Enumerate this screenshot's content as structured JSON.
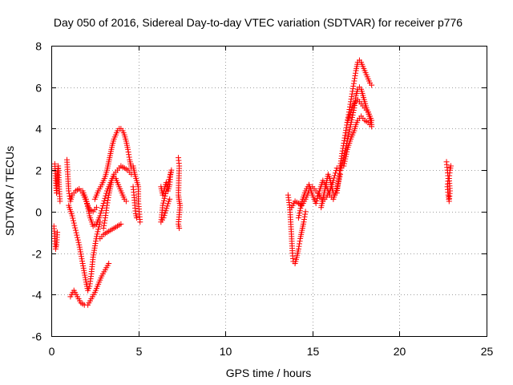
{
  "chart_data": {
    "type": "scatter",
    "title": "Day 050 of 2016, Sidereal Day-to-day VTEC variation (SDTVAR) for receiver p776",
    "xlabel": "GPS time / hours",
    "ylabel": "SDTVAR / TECUs",
    "xlim": [
      0,
      25
    ],
    "ylim": [
      -6,
      8
    ],
    "xticks": [
      0,
      5,
      10,
      15,
      20,
      25
    ],
    "yticks": [
      -6,
      -4,
      -2,
      0,
      2,
      4,
      6,
      8
    ],
    "grid": true,
    "marker": "+",
    "color": "#ff0000",
    "series": [
      {
        "name": "SDTVAR",
        "segments": [
          [
            [
              0.15,
              -0.7
            ],
            [
              0.2,
              -1.3
            ],
            [
              0.25,
              -1.8
            ],
            [
              0.3,
              -1.6
            ],
            [
              0.35,
              -1.0
            ]
          ],
          [
            [
              0.2,
              2.3
            ],
            [
              0.25,
              1.5
            ],
            [
              0.3,
              0.9
            ],
            [
              0.35,
              1.8
            ],
            [
              0.4,
              2.2
            ],
            [
              0.45,
              1.2
            ],
            [
              0.5,
              0.5
            ]
          ],
          [
            [
              0.9,
              2.5
            ],
            [
              1.0,
              1.0
            ],
            [
              1.1,
              0.5
            ],
            [
              1.2,
              0.8
            ],
            [
              1.4,
              1.0
            ],
            [
              1.6,
              1.1
            ],
            [
              1.8,
              0.9
            ],
            [
              2.0,
              0.5
            ],
            [
              2.2,
              0.1
            ],
            [
              2.4,
              0.0
            ],
            [
              2.6,
              0.2
            ]
          ],
          [
            [
              1.0,
              0.3
            ],
            [
              1.2,
              -0.2
            ],
            [
              1.4,
              -0.9
            ],
            [
              1.6,
              -1.6
            ],
            [
              1.8,
              -2.5
            ],
            [
              2.0,
              -3.4
            ],
            [
              2.1,
              -3.8
            ],
            [
              2.2,
              -3.6
            ],
            [
              2.3,
              -3.0
            ],
            [
              2.4,
              -2.2
            ],
            [
              2.6,
              -1.2
            ],
            [
              2.8,
              -0.5
            ]
          ],
          [
            [
              1.1,
              -4.1
            ],
            [
              1.3,
              -3.8
            ],
            [
              1.5,
              -4.1
            ],
            [
              1.7,
              -4.4
            ],
            [
              1.9,
              -4.5
            ],
            [
              2.1,
              -4.5
            ],
            [
              2.3,
              -4.2
            ],
            [
              2.5,
              -3.9
            ],
            [
              2.7,
              -3.5
            ],
            [
              2.9,
              -3.1
            ],
            [
              3.1,
              -2.8
            ],
            [
              3.3,
              -2.5
            ]
          ],
          [
            [
              1.8,
              1.0
            ],
            [
              2.0,
              0.6
            ],
            [
              2.2,
              -0.2
            ],
            [
              2.4,
              -0.7
            ],
            [
              2.6,
              -0.6
            ],
            [
              2.8,
              -0.2
            ],
            [
              3.0,
              0.4
            ],
            [
              3.2,
              1.0
            ],
            [
              3.4,
              1.4
            ],
            [
              3.6,
              1.8
            ],
            [
              3.8,
              2.0
            ],
            [
              4.0,
              2.2
            ],
            [
              4.2,
              2.1
            ],
            [
              4.4,
              2.0
            ],
            [
              4.6,
              1.8
            ]
          ],
          [
            [
              2.5,
              0.6
            ],
            [
              2.7,
              1.0
            ],
            [
              2.9,
              1.3
            ],
            [
              3.1,
              1.7
            ],
            [
              3.2,
              2.0
            ],
            [
              3.3,
              2.4
            ],
            [
              3.4,
              2.8
            ],
            [
              3.5,
              3.2
            ],
            [
              3.6,
              3.5
            ],
            [
              3.7,
              3.7
            ],
            [
              3.8,
              3.9
            ],
            [
              3.9,
              4.0
            ],
            [
              4.0,
              4.0
            ],
            [
              4.1,
              3.9
            ],
            [
              4.2,
              3.7
            ],
            [
              4.3,
              3.4
            ],
            [
              4.4,
              3.0
            ],
            [
              4.5,
              2.5
            ],
            [
              4.6,
              2.1
            ]
          ],
          [
            [
              2.8,
              -1.3
            ],
            [
              3.0,
              -1.1
            ],
            [
              3.2,
              -1.0
            ],
            [
              3.4,
              -0.9
            ],
            [
              3.6,
              -0.8
            ],
            [
              3.8,
              -0.7
            ],
            [
              4.0,
              -0.6
            ]
          ],
          [
            [
              3.0,
              -0.8
            ],
            [
              3.1,
              -0.3
            ],
            [
              3.2,
              0.3
            ],
            [
              3.3,
              0.8
            ],
            [
              3.4,
              1.2
            ],
            [
              3.5,
              1.6
            ],
            [
              3.6,
              1.7
            ],
            [
              3.7,
              1.6
            ],
            [
              3.8,
              1.4
            ],
            [
              3.9,
              1.2
            ],
            [
              4.0,
              1.0
            ],
            [
              4.1,
              0.8
            ],
            [
              4.2,
              0.6
            ],
            [
              4.3,
              0.5
            ]
          ],
          [
            [
              4.7,
              2.2
            ],
            [
              4.8,
              1.8
            ],
            [
              4.9,
              1.5
            ],
            [
              5.0,
              1.2
            ],
            [
              5.0,
              0.5
            ],
            [
              5.05,
              0.0
            ],
            [
              5.1,
              -0.5
            ]
          ],
          [
            [
              4.7,
              1.2
            ],
            [
              4.75,
              0.8
            ],
            [
              4.8,
              0.3
            ],
            [
              4.85,
              -0.1
            ],
            [
              4.9,
              -0.3
            ]
          ],
          [
            [
              6.3,
              1.2
            ],
            [
              6.4,
              0.8
            ],
            [
              6.5,
              1.1
            ],
            [
              6.6,
              1.4
            ],
            [
              6.7,
              1.0
            ],
            [
              6.8,
              1.3
            ],
            [
              6.85,
              1.8
            ],
            [
              6.9,
              2.0
            ],
            [
              6.4,
              0.3
            ],
            [
              6.3,
              -0.5
            ],
            [
              6.45,
              -0.3
            ],
            [
              6.75,
              0.5
            ],
            [
              6.8,
              0.6
            ]
          ],
          [
            [
              7.3,
              2.6
            ],
            [
              7.35,
              2.2
            ],
            [
              7.3,
              0.8
            ],
            [
              7.35,
              0.5
            ],
            [
              7.4,
              0.3
            ],
            [
              7.3,
              -0.6
            ],
            [
              7.35,
              -0.8
            ]
          ],
          [
            [
              13.6,
              0.8
            ],
            [
              13.7,
              0.2
            ],
            [
              13.75,
              -0.5
            ],
            [
              13.8,
              -1.2
            ],
            [
              13.85,
              -2.0
            ],
            [
              13.9,
              -2.4
            ],
            [
              14.0,
              -2.5
            ],
            [
              14.1,
              -2.2
            ],
            [
              14.2,
              -1.8
            ],
            [
              14.3,
              -1.3
            ],
            [
              14.4,
              -0.9
            ],
            [
              14.5,
              -0.5
            ],
            [
              14.6,
              0.0
            ]
          ],
          [
            [
              13.8,
              0.2
            ],
            [
              14.0,
              0.5
            ],
            [
              14.2,
              0.4
            ],
            [
              14.4,
              0.3
            ],
            [
              14.6,
              0.6
            ],
            [
              14.8,
              1.0
            ],
            [
              15.0,
              1.2
            ],
            [
              15.2,
              1.0
            ],
            [
              15.4,
              0.8
            ],
            [
              15.6,
              0.5
            ],
            [
              15.8,
              0.7
            ],
            [
              16.0,
              1.0
            ],
            [
              16.2,
              1.5
            ],
            [
              16.4,
              2.1
            ]
          ],
          [
            [
              14.2,
              -0.3
            ],
            [
              14.4,
              0.5
            ],
            [
              14.6,
              1.0
            ],
            [
              14.8,
              1.3
            ],
            [
              15.0,
              0.8
            ],
            [
              15.2,
              0.4
            ],
            [
              15.4,
              1.0
            ],
            [
              15.6,
              1.5
            ],
            [
              15.8,
              1.2
            ],
            [
              16.0,
              0.8
            ],
            [
              16.2,
              0.6
            ],
            [
              16.4,
              1.1
            ],
            [
              16.6,
              1.8
            ]
          ],
          [
            [
              15.5,
              0.2
            ],
            [
              15.6,
              0.6
            ],
            [
              15.7,
              1.0
            ],
            [
              15.8,
              1.4
            ],
            [
              15.9,
              1.8
            ],
            [
              16.0,
              1.6
            ],
            [
              16.1,
              1.2
            ],
            [
              16.2,
              0.9
            ]
          ],
          [
            [
              16.4,
              0.9
            ],
            [
              16.5,
              1.5
            ],
            [
              16.6,
              2.2
            ],
            [
              16.7,
              2.8
            ],
            [
              16.8,
              3.3
            ],
            [
              16.9,
              3.8
            ],
            [
              17.0,
              4.3
            ],
            [
              17.1,
              4.8
            ],
            [
              17.2,
              5.3
            ],
            [
              17.3,
              5.8
            ],
            [
              17.4,
              6.3
            ],
            [
              17.5,
              6.8
            ],
            [
              17.6,
              7.2
            ],
            [
              17.7,
              7.3
            ],
            [
              17.8,
              7.2
            ],
            [
              17.9,
              7.0
            ],
            [
              18.0,
              6.8
            ],
            [
              18.1,
              6.6
            ],
            [
              18.2,
              6.4
            ],
            [
              18.3,
              6.2
            ],
            [
              18.4,
              6.1
            ]
          ],
          [
            [
              16.6,
              2.0
            ],
            [
              16.8,
              2.6
            ],
            [
              17.0,
              3.4
            ],
            [
              17.2,
              4.2
            ],
            [
              17.4,
              5.0
            ],
            [
              17.5,
              5.6
            ],
            [
              17.6,
              5.9
            ],
            [
              17.7,
              6.0
            ],
            [
              17.8,
              5.9
            ],
            [
              17.9,
              5.6
            ],
            [
              18.0,
              5.3
            ],
            [
              18.1,
              5.0
            ],
            [
              18.2,
              4.8
            ],
            [
              18.3,
              4.6
            ],
            [
              18.4,
              4.4
            ]
          ],
          [
            [
              16.8,
              2.2
            ],
            [
              17.0,
              3.0
            ],
            [
              17.2,
              3.5
            ],
            [
              17.4,
              3.9
            ],
            [
              17.5,
              4.2
            ],
            [
              17.6,
              4.4
            ],
            [
              17.7,
              4.5
            ],
            [
              17.8,
              4.6
            ],
            [
              17.9,
              4.5
            ],
            [
              18.0,
              4.4
            ],
            [
              18.2,
              4.3
            ],
            [
              18.4,
              4.1
            ]
          ],
          [
            [
              17.0,
              4.3
            ],
            [
              17.2,
              4.8
            ],
            [
              17.4,
              5.2
            ],
            [
              17.6,
              5.4
            ],
            [
              17.8,
              5.2
            ],
            [
              18.0,
              5.0
            ],
            [
              18.2,
              4.8
            ],
            [
              18.3,
              4.5
            ],
            [
              18.4,
              4.2
            ]
          ],
          [
            [
              22.7,
              2.4
            ],
            [
              22.75,
              2.0
            ],
            [
              22.8,
              1.6
            ],
            [
              22.75,
              1.2
            ],
            [
              22.8,
              0.8
            ],
            [
              22.85,
              0.5
            ],
            [
              22.9,
              1.0
            ],
            [
              22.85,
              1.6
            ],
            [
              22.9,
              2.0
            ],
            [
              22.95,
              2.2
            ]
          ]
        ]
      }
    ]
  }
}
